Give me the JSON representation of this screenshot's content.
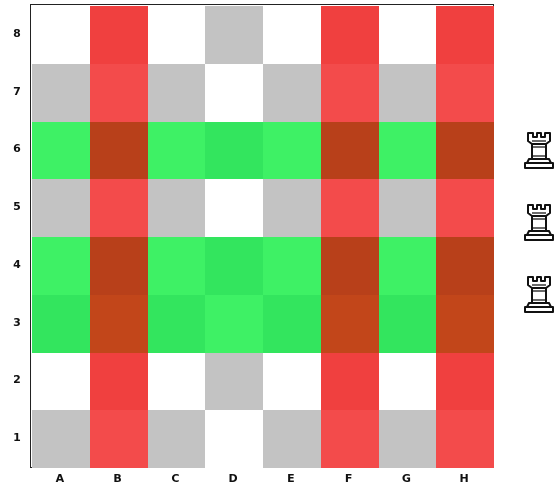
{
  "board": {
    "files": [
      "A",
      "B",
      "C",
      "D",
      "E",
      "F",
      "G",
      "H"
    ],
    "ranks": [
      "8",
      "7",
      "6",
      "5",
      "4",
      "3",
      "2",
      "1"
    ],
    "colors": {
      "light": "#ffffff",
      "dark": "#c3c3c3",
      "red_light": "#f34b4b",
      "red_dark": "#f0403f",
      "green_light": "#3ef165",
      "green_dark": "#33e55e",
      "brown_light": "#c2461a",
      "brown_dark": "#b8401a"
    },
    "highlighted_ranks": [
      "6",
      "4",
      "3"
    ],
    "highlighted_files": [
      "B",
      "F",
      "H"
    ]
  },
  "side_pieces": [
    {
      "name": "white-rook",
      "icon": "rook-icon"
    },
    {
      "name": "white-rook",
      "icon": "rook-icon"
    },
    {
      "name": "white-rook",
      "icon": "rook-icon"
    }
  ]
}
